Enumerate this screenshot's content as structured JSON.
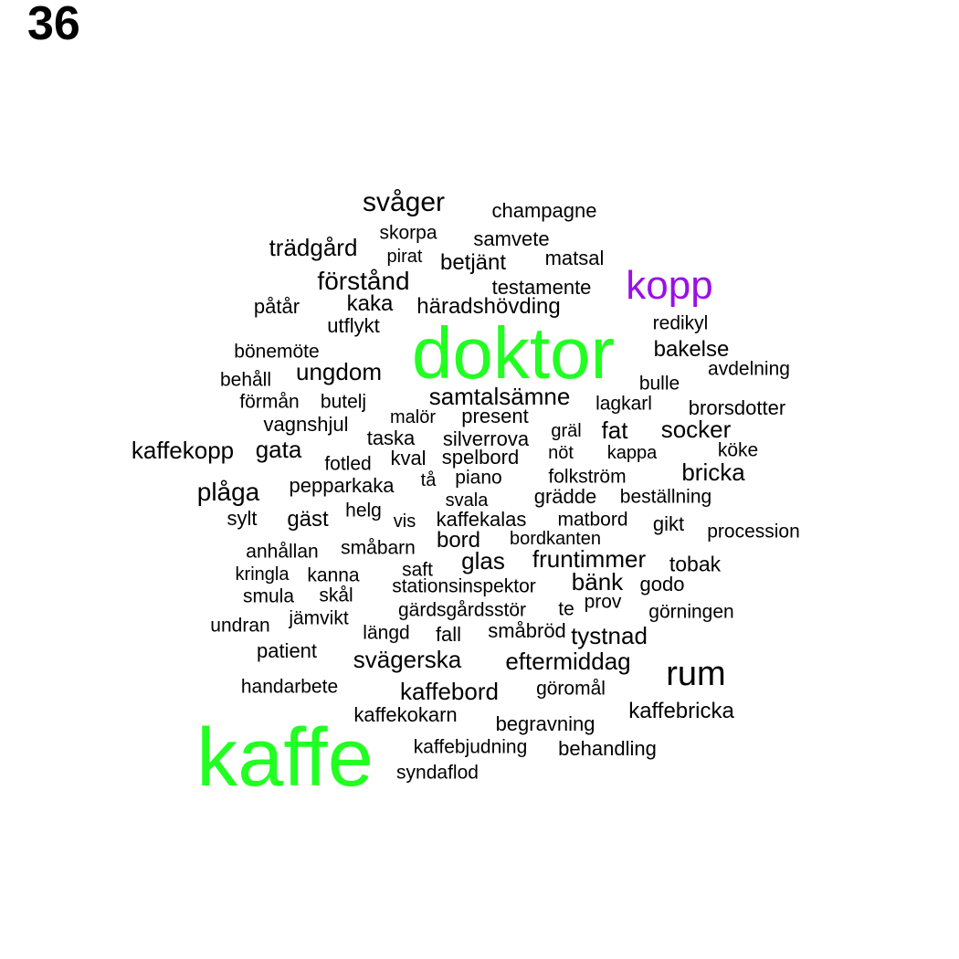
{
  "page_number": "36",
  "colors": {
    "default": "#000000",
    "highlight_green": "#22ff22",
    "highlight_purple": "#9a10e6"
  },
  "words": [
    {
      "text": "kaffe",
      "color": "highlight_green"
    },
    {
      "text": "doktor",
      "color": "highlight_green"
    },
    {
      "text": "kopp",
      "color": "highlight_purple"
    },
    {
      "text": "rum"
    },
    {
      "text": "svåger"
    },
    {
      "text": "champagne"
    },
    {
      "text": "skorpa"
    },
    {
      "text": "samvete"
    },
    {
      "text": "trädgård"
    },
    {
      "text": "pirat"
    },
    {
      "text": "betjänt"
    },
    {
      "text": "matsal"
    },
    {
      "text": "förstånd"
    },
    {
      "text": "testamente"
    },
    {
      "text": "påtår"
    },
    {
      "text": "kaka"
    },
    {
      "text": "häradshövding"
    },
    {
      "text": "utflykt"
    },
    {
      "text": "redikyl"
    },
    {
      "text": "bönemöte"
    },
    {
      "text": "bakelse"
    },
    {
      "text": "behåll"
    },
    {
      "text": "ungdom"
    },
    {
      "text": "bulle"
    },
    {
      "text": "avdelning"
    },
    {
      "text": "förmån"
    },
    {
      "text": "butelj"
    },
    {
      "text": "samtalsämne"
    },
    {
      "text": "lagkarl"
    },
    {
      "text": "brorsdotter"
    },
    {
      "text": "vagnshjul"
    },
    {
      "text": "malör"
    },
    {
      "text": "present"
    },
    {
      "text": "gräl"
    },
    {
      "text": "fat"
    },
    {
      "text": "socker"
    },
    {
      "text": "kaffekopp"
    },
    {
      "text": "gata"
    },
    {
      "text": "taska"
    },
    {
      "text": "silverrova"
    },
    {
      "text": "nöt"
    },
    {
      "text": "kappa"
    },
    {
      "text": "köke"
    },
    {
      "text": "fotled"
    },
    {
      "text": "kval"
    },
    {
      "text": "spelbord"
    },
    {
      "text": "bricka"
    },
    {
      "text": "plåga"
    },
    {
      "text": "pepparkaka"
    },
    {
      "text": "tå"
    },
    {
      "text": "piano"
    },
    {
      "text": "folkström"
    },
    {
      "text": "grädde"
    },
    {
      "text": "beställning"
    },
    {
      "text": "helg"
    },
    {
      "text": "svala"
    },
    {
      "text": "sylt"
    },
    {
      "text": "gäst"
    },
    {
      "text": "vis"
    },
    {
      "text": "kaffekalas"
    },
    {
      "text": "matbord"
    },
    {
      "text": "gikt"
    },
    {
      "text": "procession"
    },
    {
      "text": "anhållan"
    },
    {
      "text": "småbarn"
    },
    {
      "text": "bord"
    },
    {
      "text": "bordkanten"
    },
    {
      "text": "glas"
    },
    {
      "text": "fruntimmer"
    },
    {
      "text": "tobak"
    },
    {
      "text": "kringla"
    },
    {
      "text": "kanna"
    },
    {
      "text": "saft"
    },
    {
      "text": "stationsinspektor"
    },
    {
      "text": "bänk"
    },
    {
      "text": "godo"
    },
    {
      "text": "smula"
    },
    {
      "text": "skål"
    },
    {
      "text": "prov"
    },
    {
      "text": "gärdsgårdsstör"
    },
    {
      "text": "te"
    },
    {
      "text": "görningen"
    },
    {
      "text": "undran"
    },
    {
      "text": "jämvikt"
    },
    {
      "text": "längd"
    },
    {
      "text": "fall"
    },
    {
      "text": "småbröd"
    },
    {
      "text": "tystnad"
    },
    {
      "text": "patient"
    },
    {
      "text": "svägerska"
    },
    {
      "text": "eftermiddag"
    },
    {
      "text": "handarbete"
    },
    {
      "text": "kaffebord"
    },
    {
      "text": "göromål"
    },
    {
      "text": "kaffebricka"
    },
    {
      "text": "kaffekokarn"
    },
    {
      "text": "begravning"
    },
    {
      "text": "kaffebjudning"
    },
    {
      "text": "behandling"
    },
    {
      "text": "syndaflod"
    }
  ]
}
